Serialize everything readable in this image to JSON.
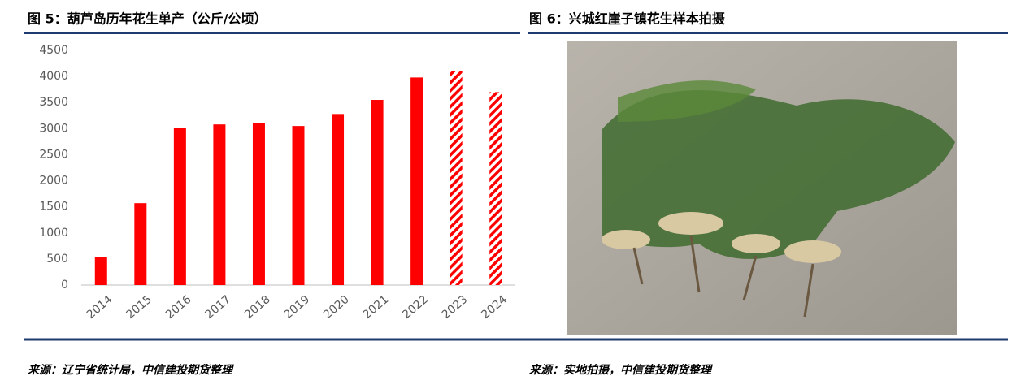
{
  "chart_data": {
    "type": "bar",
    "title": "图 5：葫芦岛历年花生单产（公斤/公顷）",
    "categories": [
      "2014",
      "2015",
      "2016",
      "2017",
      "2018",
      "2019",
      "2020",
      "2021",
      "2022",
      "2023",
      "2024"
    ],
    "values": [
      540,
      1570,
      3020,
      3080,
      3100,
      3050,
      3280,
      3550,
      3980,
      4100,
      3700
    ],
    "hatched": [
      false,
      false,
      false,
      false,
      false,
      false,
      false,
      false,
      false,
      true,
      true
    ],
    "color": "#ff0000",
    "ylim": [
      0,
      4500
    ],
    "yticks": [
      0,
      500,
      1000,
      1500,
      2000,
      2500,
      3000,
      3500,
      4000,
      4500
    ],
    "grid": false,
    "source": "来源：辽宁省统计局，中信建投期货整理"
  },
  "photo_figure": {
    "title": "图 6：兴城红崖子镇花生样本拍摄",
    "source": "来源：实地拍摄，中信建投期货整理"
  }
}
